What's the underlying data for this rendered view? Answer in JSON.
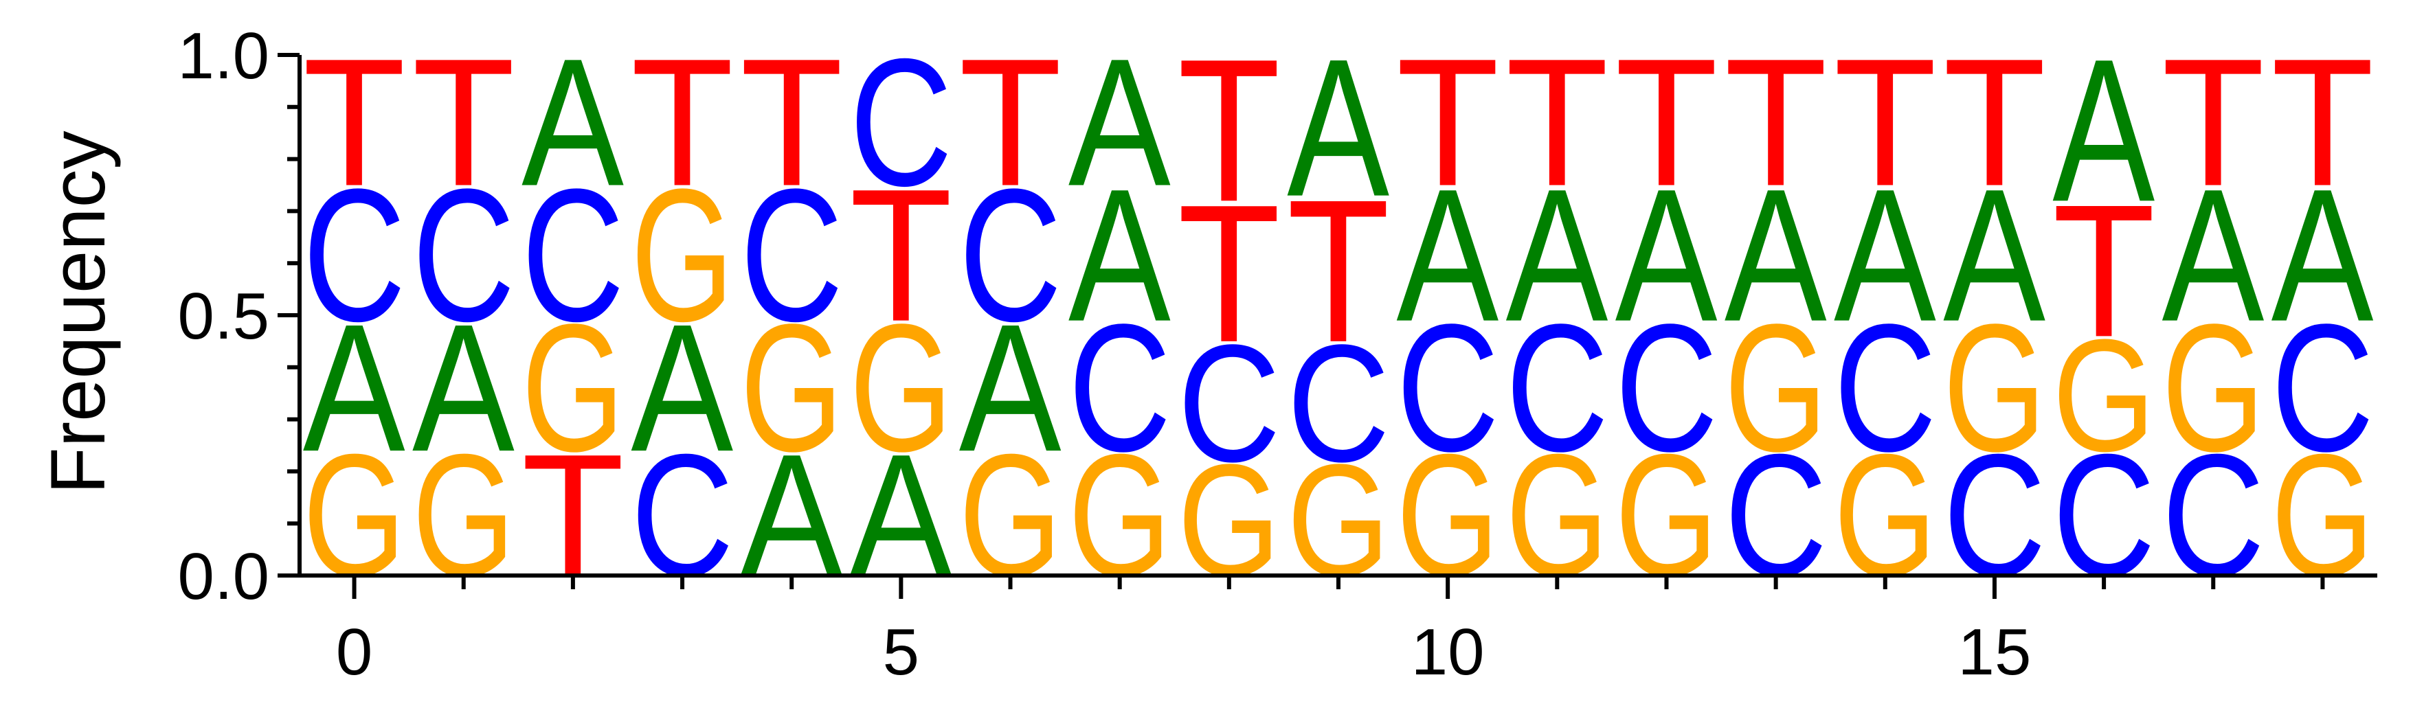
{
  "chart_data": {
    "type": "sequence-logo",
    "ylabel": "Frequency",
    "xlabel": "",
    "title": "",
    "ylim": [
      0,
      1
    ],
    "xlim": [
      -0.5,
      18.5
    ],
    "y_ticks": [
      {
        "value": 0.0,
        "label": "0.0"
      },
      {
        "value": 0.5,
        "label": "0.5"
      },
      {
        "value": 1.0,
        "label": "1.0"
      }
    ],
    "y_minor_ticks": [
      0.1,
      0.2,
      0.3,
      0.4,
      0.6,
      0.7,
      0.8,
      0.9
    ],
    "x_ticks": [
      {
        "value": 0,
        "label": "0"
      },
      {
        "value": 5,
        "label": "5"
      },
      {
        "value": 10,
        "label": "10"
      },
      {
        "value": 15,
        "label": "15"
      }
    ],
    "x_minor_ticks": [
      1,
      2,
      3,
      4,
      6,
      7,
      8,
      9,
      11,
      12,
      13,
      14,
      16,
      17,
      18
    ],
    "colors": {
      "A": "#008000",
      "C": "#0000ff",
      "G": "#ffa500",
      "T": "#ff0000"
    },
    "positions": [
      {
        "x": 0,
        "stack": [
          [
            "G",
            0.24
          ],
          [
            "A",
            0.25
          ],
          [
            "C",
            0.26
          ],
          [
            "T",
            0.25
          ]
        ]
      },
      {
        "x": 1,
        "stack": [
          [
            "G",
            0.24
          ],
          [
            "A",
            0.25
          ],
          [
            "C",
            0.26
          ],
          [
            "T",
            0.25
          ]
        ]
      },
      {
        "x": 2,
        "stack": [
          [
            "T",
            0.24
          ],
          [
            "G",
            0.25
          ],
          [
            "C",
            0.26
          ],
          [
            "A",
            0.25
          ]
        ]
      },
      {
        "x": 3,
        "stack": [
          [
            "C",
            0.24
          ],
          [
            "A",
            0.25
          ],
          [
            "G",
            0.26
          ],
          [
            "T",
            0.25
          ]
        ]
      },
      {
        "x": 4,
        "stack": [
          [
            "A",
            0.24
          ],
          [
            "G",
            0.25
          ],
          [
            "C",
            0.26
          ],
          [
            "T",
            0.25
          ]
        ]
      },
      {
        "x": 5,
        "stack": [
          [
            "A",
            0.24
          ],
          [
            "G",
            0.25
          ],
          [
            "T",
            0.26
          ],
          [
            "C",
            0.25
          ]
        ]
      },
      {
        "x": 6,
        "stack": [
          [
            "G",
            0.24
          ],
          [
            "A",
            0.25
          ],
          [
            "C",
            0.26
          ],
          [
            "T",
            0.25
          ]
        ]
      },
      {
        "x": 7,
        "stack": [
          [
            "G",
            0.24
          ],
          [
            "C",
            0.25
          ],
          [
            "A",
            0.26
          ],
          [
            "A",
            0.25
          ]
        ]
      },
      {
        "x": 8,
        "stack": [
          [
            "G",
            0.22
          ],
          [
            "C",
            0.23
          ],
          [
            "T",
            0.27
          ],
          [
            "T",
            0.28
          ]
        ]
      },
      {
        "x": 9,
        "stack": [
          [
            "G",
            0.22
          ],
          [
            "C",
            0.23
          ],
          [
            "T",
            0.28
          ],
          [
            "A",
            0.27
          ]
        ]
      },
      {
        "x": 10,
        "stack": [
          [
            "G",
            0.24
          ],
          [
            "C",
            0.25
          ],
          [
            "A",
            0.26
          ],
          [
            "T",
            0.25
          ]
        ]
      },
      {
        "x": 11,
        "stack": [
          [
            "G",
            0.24
          ],
          [
            "C",
            0.25
          ],
          [
            "A",
            0.26
          ],
          [
            "T",
            0.25
          ]
        ]
      },
      {
        "x": 12,
        "stack": [
          [
            "G",
            0.24
          ],
          [
            "C",
            0.25
          ],
          [
            "A",
            0.26
          ],
          [
            "T",
            0.25
          ]
        ]
      },
      {
        "x": 13,
        "stack": [
          [
            "C",
            0.24
          ],
          [
            "G",
            0.25
          ],
          [
            "A",
            0.26
          ],
          [
            "T",
            0.25
          ]
        ]
      },
      {
        "x": 14,
        "stack": [
          [
            "G",
            0.24
          ],
          [
            "C",
            0.25
          ],
          [
            "A",
            0.26
          ],
          [
            "T",
            0.25
          ]
        ]
      },
      {
        "x": 15,
        "stack": [
          [
            "C",
            0.24
          ],
          [
            "G",
            0.25
          ],
          [
            "A",
            0.26
          ],
          [
            "T",
            0.25
          ]
        ]
      },
      {
        "x": 16,
        "stack": [
          [
            "C",
            0.24
          ],
          [
            "G",
            0.22
          ],
          [
            "T",
            0.26
          ],
          [
            "A",
            0.28
          ]
        ]
      },
      {
        "x": 17,
        "stack": [
          [
            "C",
            0.24
          ],
          [
            "G",
            0.25
          ],
          [
            "A",
            0.26
          ],
          [
            "T",
            0.25
          ]
        ]
      },
      {
        "x": 18,
        "stack": [
          [
            "G",
            0.24
          ],
          [
            "C",
            0.25
          ],
          [
            "A",
            0.26
          ],
          [
            "T",
            0.25
          ]
        ]
      }
    ]
  }
}
